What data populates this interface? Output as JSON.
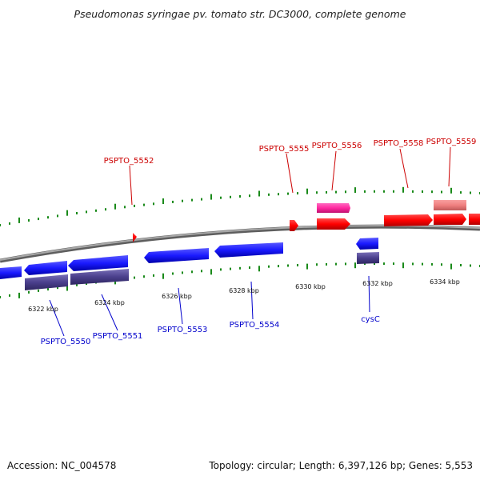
{
  "title": "Pseudomonas syringae pv. tomato str. DC3000, complete genome",
  "footer": {
    "accession": "Accession: NC_004578",
    "summary": "Topology: circular; Length: 6,397,126 bp; Genes: 5,553"
  },
  "scale_labels": [
    "6322 kbp",
    "6324 kbp",
    "6326 kbp",
    "6328 kbp",
    "6330 kbp",
    "6332 kbp",
    "6334 kbp"
  ],
  "forward_gene_labels": [
    "PSPTO_5552",
    "PSPTO_5555",
    "PSPTO_5556",
    "PSPTO_5558",
    "PSPTO_5559"
  ],
  "reverse_gene_labels": [
    "PSPTO_5550",
    "PSPTO_5551",
    "PSPTO_5553",
    "PSPTO_5554",
    "cysC"
  ],
  "colors": {
    "forward_gene": "#ff0000",
    "forward_gene_alt": "#ff2aa0",
    "forward_feature_light": "#f08080",
    "reverse_gene": "#1a1aff",
    "reverse_feature": "#4a3f8c",
    "forward_label": "#cc0000",
    "reverse_label": "#0000cc",
    "tick": "#1a8a1a",
    "backbone": "#8c8c8c"
  }
}
